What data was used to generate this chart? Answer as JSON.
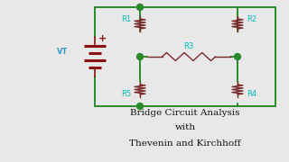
{
  "bg_color": "#e8e8e8",
  "wire_color": "#2a8a2a",
  "resistor_color": "#7a2a2a",
  "node_color": "#2a8a2a",
  "label_color": "#00bbbb",
  "battery_color": "#8b1010",
  "vt_color": "#3399cc",
  "plus_color": "#8b1010",
  "text_color": "#111111",
  "title_lines": [
    "Bridge Circuit Analysis",
    "with",
    "Thevenin and Kirchhoff"
  ],
  "title_fontsize": [
    7.5,
    7.5,
    7.5
  ]
}
